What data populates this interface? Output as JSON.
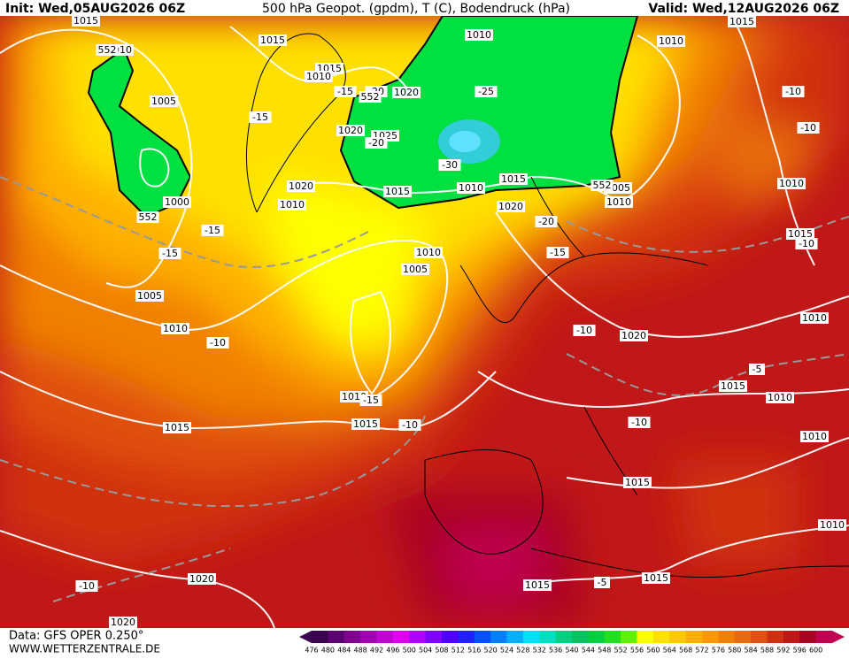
{
  "header": {
    "init": "Init: Wed,05AUG2026 06Z",
    "title": "500 hPa Geopot. (gpdm), T (C), Bodendruck (hPa)",
    "valid": "Valid: Wed,12AUG2026 06Z"
  },
  "footer": {
    "data": "Data: GFS OPER 0.250°",
    "site": "WWW.WETTERZENTRALE.DE"
  },
  "colorbar": {
    "labels": [
      476,
      480,
      484,
      488,
      492,
      496,
      500,
      504,
      508,
      512,
      516,
      520,
      524,
      528,
      532,
      536,
      540,
      544,
      548,
      552,
      556,
      560,
      564,
      568,
      572,
      576,
      580,
      584,
      588,
      592,
      596,
      600
    ],
    "colors": [
      "#3c0050",
      "#5a0070",
      "#800090",
      "#a000b0",
      "#c000d0",
      "#e000f0",
      "#b000ff",
      "#8000ff",
      "#5000ff",
      "#2020ff",
      "#0050ff",
      "#0080ff",
      "#00b0ff",
      "#00e0ff",
      "#00e0c0",
      "#00d080",
      "#00c060",
      "#00d040",
      "#20e020",
      "#60f000",
      "#ffff00",
      "#ffe000",
      "#ffc800",
      "#ffb000",
      "#ff9800",
      "#f08000",
      "#e86a10",
      "#e05010",
      "#d03010",
      "#c01818",
      "#a80020",
      "#c00050"
    ]
  },
  "map": {
    "isobar_labels": [
      "1015",
      "1010",
      "1015",
      "1015",
      "1010",
      "1020",
      "1010",
      "1010",
      "1015",
      "1005",
      "1020",
      "1025",
      "1020",
      "1015",
      "1010",
      "1015",
      "1005",
      "1010",
      "1010",
      "1000",
      "1010",
      "1020",
      "1015",
      "1010",
      "1005",
      "1005",
      "1010",
      "1020",
      "1010",
      "1015",
      "1010",
      "1010",
      "1015",
      "1015",
      "1010",
      "1015",
      "1010",
      "1020",
      "1015",
      "1015",
      "1020"
    ],
    "temperature_labels": [
      "-15",
      "-20",
      "-25",
      "-15",
      "-30",
      "-20",
      "-15",
      "-15",
      "-20",
      "-15",
      "-10",
      "-10",
      "-10",
      "-10",
      "-10",
      "-5",
      "-15",
      "-10",
      "-10",
      "-10",
      "-5"
    ],
    "geopotential_labels": [
      "552",
      "552",
      "552",
      "552"
    ]
  }
}
